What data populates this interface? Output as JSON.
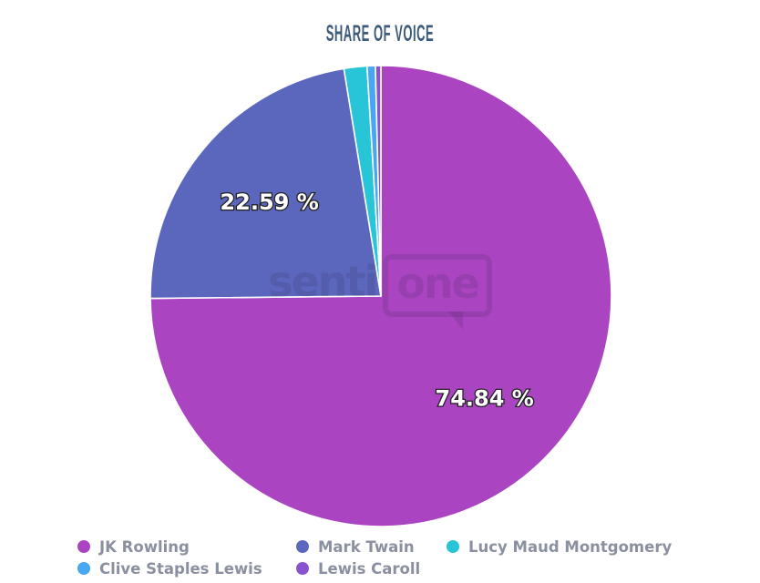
{
  "chart_data": {
    "type": "pie",
    "title": "SHARE OF VOICE",
    "legend_position": "bottom",
    "units": "%",
    "series": [
      {
        "name": "JK Rowling",
        "value": 74.84,
        "color": "#ab44c1",
        "label": "74.84 %"
      },
      {
        "name": "Mark Twain",
        "value": 22.59,
        "color": "#5b67bd",
        "label": "22.59 %"
      },
      {
        "name": "Lucy Maud Montgomery",
        "value": 1.61,
        "color": "#28c4d7",
        "label": ""
      },
      {
        "name": "Clive Staples Lewis",
        "value": 0.58,
        "color": "#47a7f3",
        "label": ""
      },
      {
        "name": "Lewis Caroll",
        "value": 0.38,
        "color": "#8a52cf",
        "label": ""
      }
    ]
  },
  "watermark": {
    "text_left": "senti",
    "text_right": "one"
  },
  "colors": {
    "background": "#ffffff",
    "title": "#3c5a7c",
    "legend_text": "#8b90a0",
    "label_fill": "#ffffff",
    "label_outline": "#222222",
    "slice_separator": "#ffffff"
  }
}
